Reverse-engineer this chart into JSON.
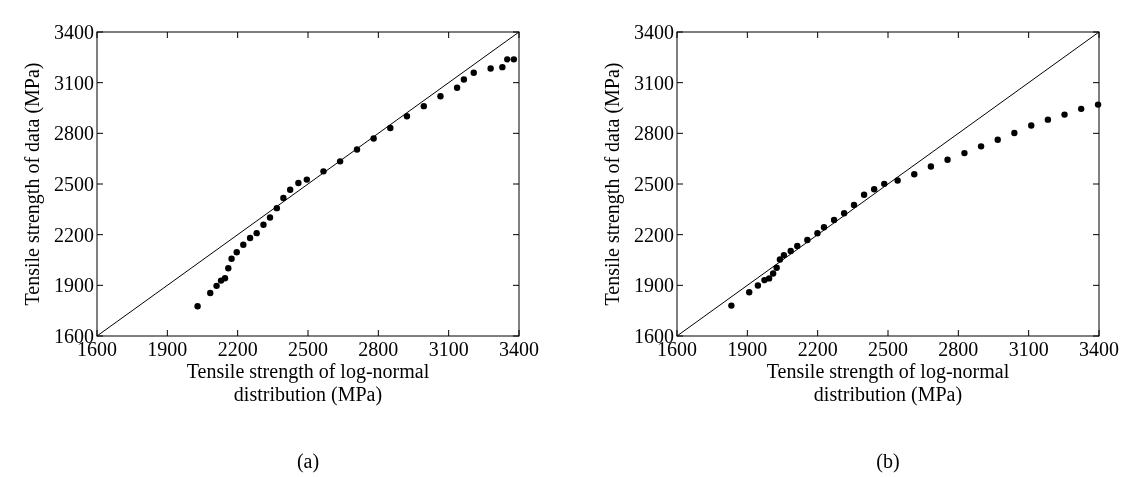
{
  "chart_data": [
    {
      "type": "scatter",
      "xlabel": "Tensile strength of log-normal distribution (MPa)",
      "ylabel": "Tensile strength of data (MPa)",
      "annotations": [
        "(a)"
      ],
      "xlim": [
        1600,
        3400
      ],
      "ylim": [
        1600,
        3400
      ],
      "xticks": [
        1600,
        1900,
        2200,
        2500,
        2800,
        3100,
        3400
      ],
      "yticks": [
        1600,
        1900,
        2200,
        2500,
        2800,
        3100,
        3400
      ],
      "grid": false,
      "marker": "circle",
      "series": [
        {
          "type": "scatter",
          "color": "#000000",
          "x": [
            2029,
            2083,
            2110,
            2129,
            2146,
            2160,
            2174,
            2196,
            2224,
            2253,
            2281,
            2310,
            2338,
            2367,
            2395,
            2424,
            2459,
            2495,
            2566,
            2637,
            2709,
            2780,
            2851,
            2922,
            2994,
            3065,
            3136,
            3165,
            3207,
            3279,
            3329,
            3350,
            3378
          ],
          "values": [
            1776,
            1855,
            1897,
            1928,
            1942,
            2001,
            2057,
            2096,
            2140,
            2180,
            2209,
            2259,
            2302,
            2357,
            2417,
            2466,
            2506,
            2526,
            2575,
            2634,
            2704,
            2769,
            2832,
            2901,
            2961,
            3020,
            3070,
            3119,
            3159,
            3184,
            3192,
            3238,
            3238
          ]
        },
        {
          "type": "line",
          "color": "#000000",
          "marker": "none",
          "x": [
            1600,
            3400
          ],
          "values": [
            1600,
            3400
          ]
        }
      ]
    },
    {
      "type": "scatter",
      "xlabel": "Tensile strength of log-normal distribution (MPa)",
      "ylabel": "Tensile strength of data (MPa)",
      "annotations": [
        "(b)"
      ],
      "xlim": [
        1600,
        3400
      ],
      "ylim": [
        1600,
        3400
      ],
      "xticks": [
        1600,
        1900,
        2200,
        2500,
        2800,
        3100,
        3400
      ],
      "yticks": [
        1600,
        1900,
        2200,
        2500,
        2800,
        3100,
        3400
      ],
      "grid": false,
      "marker": "circle",
      "series": [
        {
          "type": "scatter",
          "color": "#000000",
          "x": [
            1832,
            1908,
            1945,
            1973,
            1993,
            2010,
            2025,
            2039,
            2056,
            2085,
            2113,
            2156,
            2199,
            2227,
            2270,
            2313,
            2355,
            2398,
            2441,
            2484,
            2541,
            2612,
            2683,
            2754,
            2826,
            2897,
            2968,
            3039,
            3111,
            3182,
            3253,
            3324,
            3396
          ],
          "values": [
            1780,
            1859,
            1899,
            1931,
            1941,
            1970,
            2004,
            2053,
            2079,
            2103,
            2133,
            2168,
            2208,
            2244,
            2287,
            2327,
            2376,
            2436,
            2469,
            2501,
            2521,
            2558,
            2604,
            2644,
            2683,
            2723,
            2762,
            2802,
            2846,
            2881,
            2911,
            2945,
            2970
          ]
        },
        {
          "type": "line",
          "color": "#000000",
          "marker": "none",
          "x": [
            1600,
            3400
          ],
          "values": [
            1600,
            3400
          ]
        }
      ]
    }
  ]
}
